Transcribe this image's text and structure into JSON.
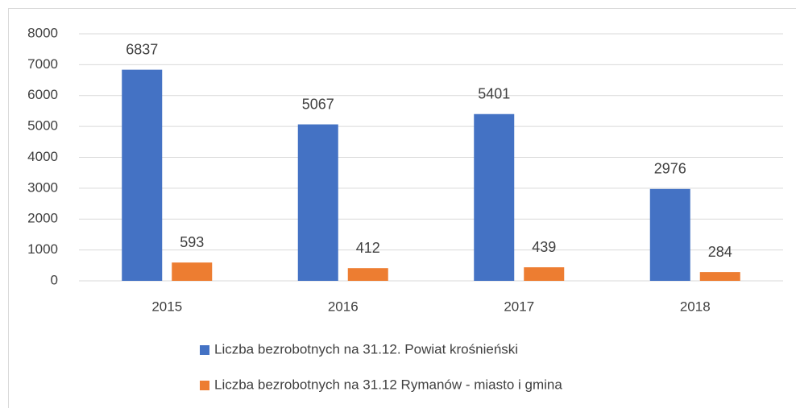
{
  "chart_data": {
    "type": "bar",
    "categories": [
      "2015",
      "2016",
      "2017",
      "2018"
    ],
    "series": [
      {
        "name": "Liczba bezrobotnych na 31.12. Powiat krośnieński",
        "color": "#4472c4",
        "values": [
          6837,
          5067,
          5401,
          2976
        ]
      },
      {
        "name": "Liczba bezrobotnych na 31.12 Rymanów - miasto i gmina",
        "color": "#ed7d31",
        "values": [
          593,
          412,
          439,
          284
        ]
      }
    ],
    "ylim": [
      0,
      8000
    ],
    "yticks": [
      0,
      1000,
      2000,
      3000,
      4000,
      5000,
      6000,
      7000,
      8000
    ],
    "grid": true,
    "legend": "bottom",
    "data_labels": true
  }
}
